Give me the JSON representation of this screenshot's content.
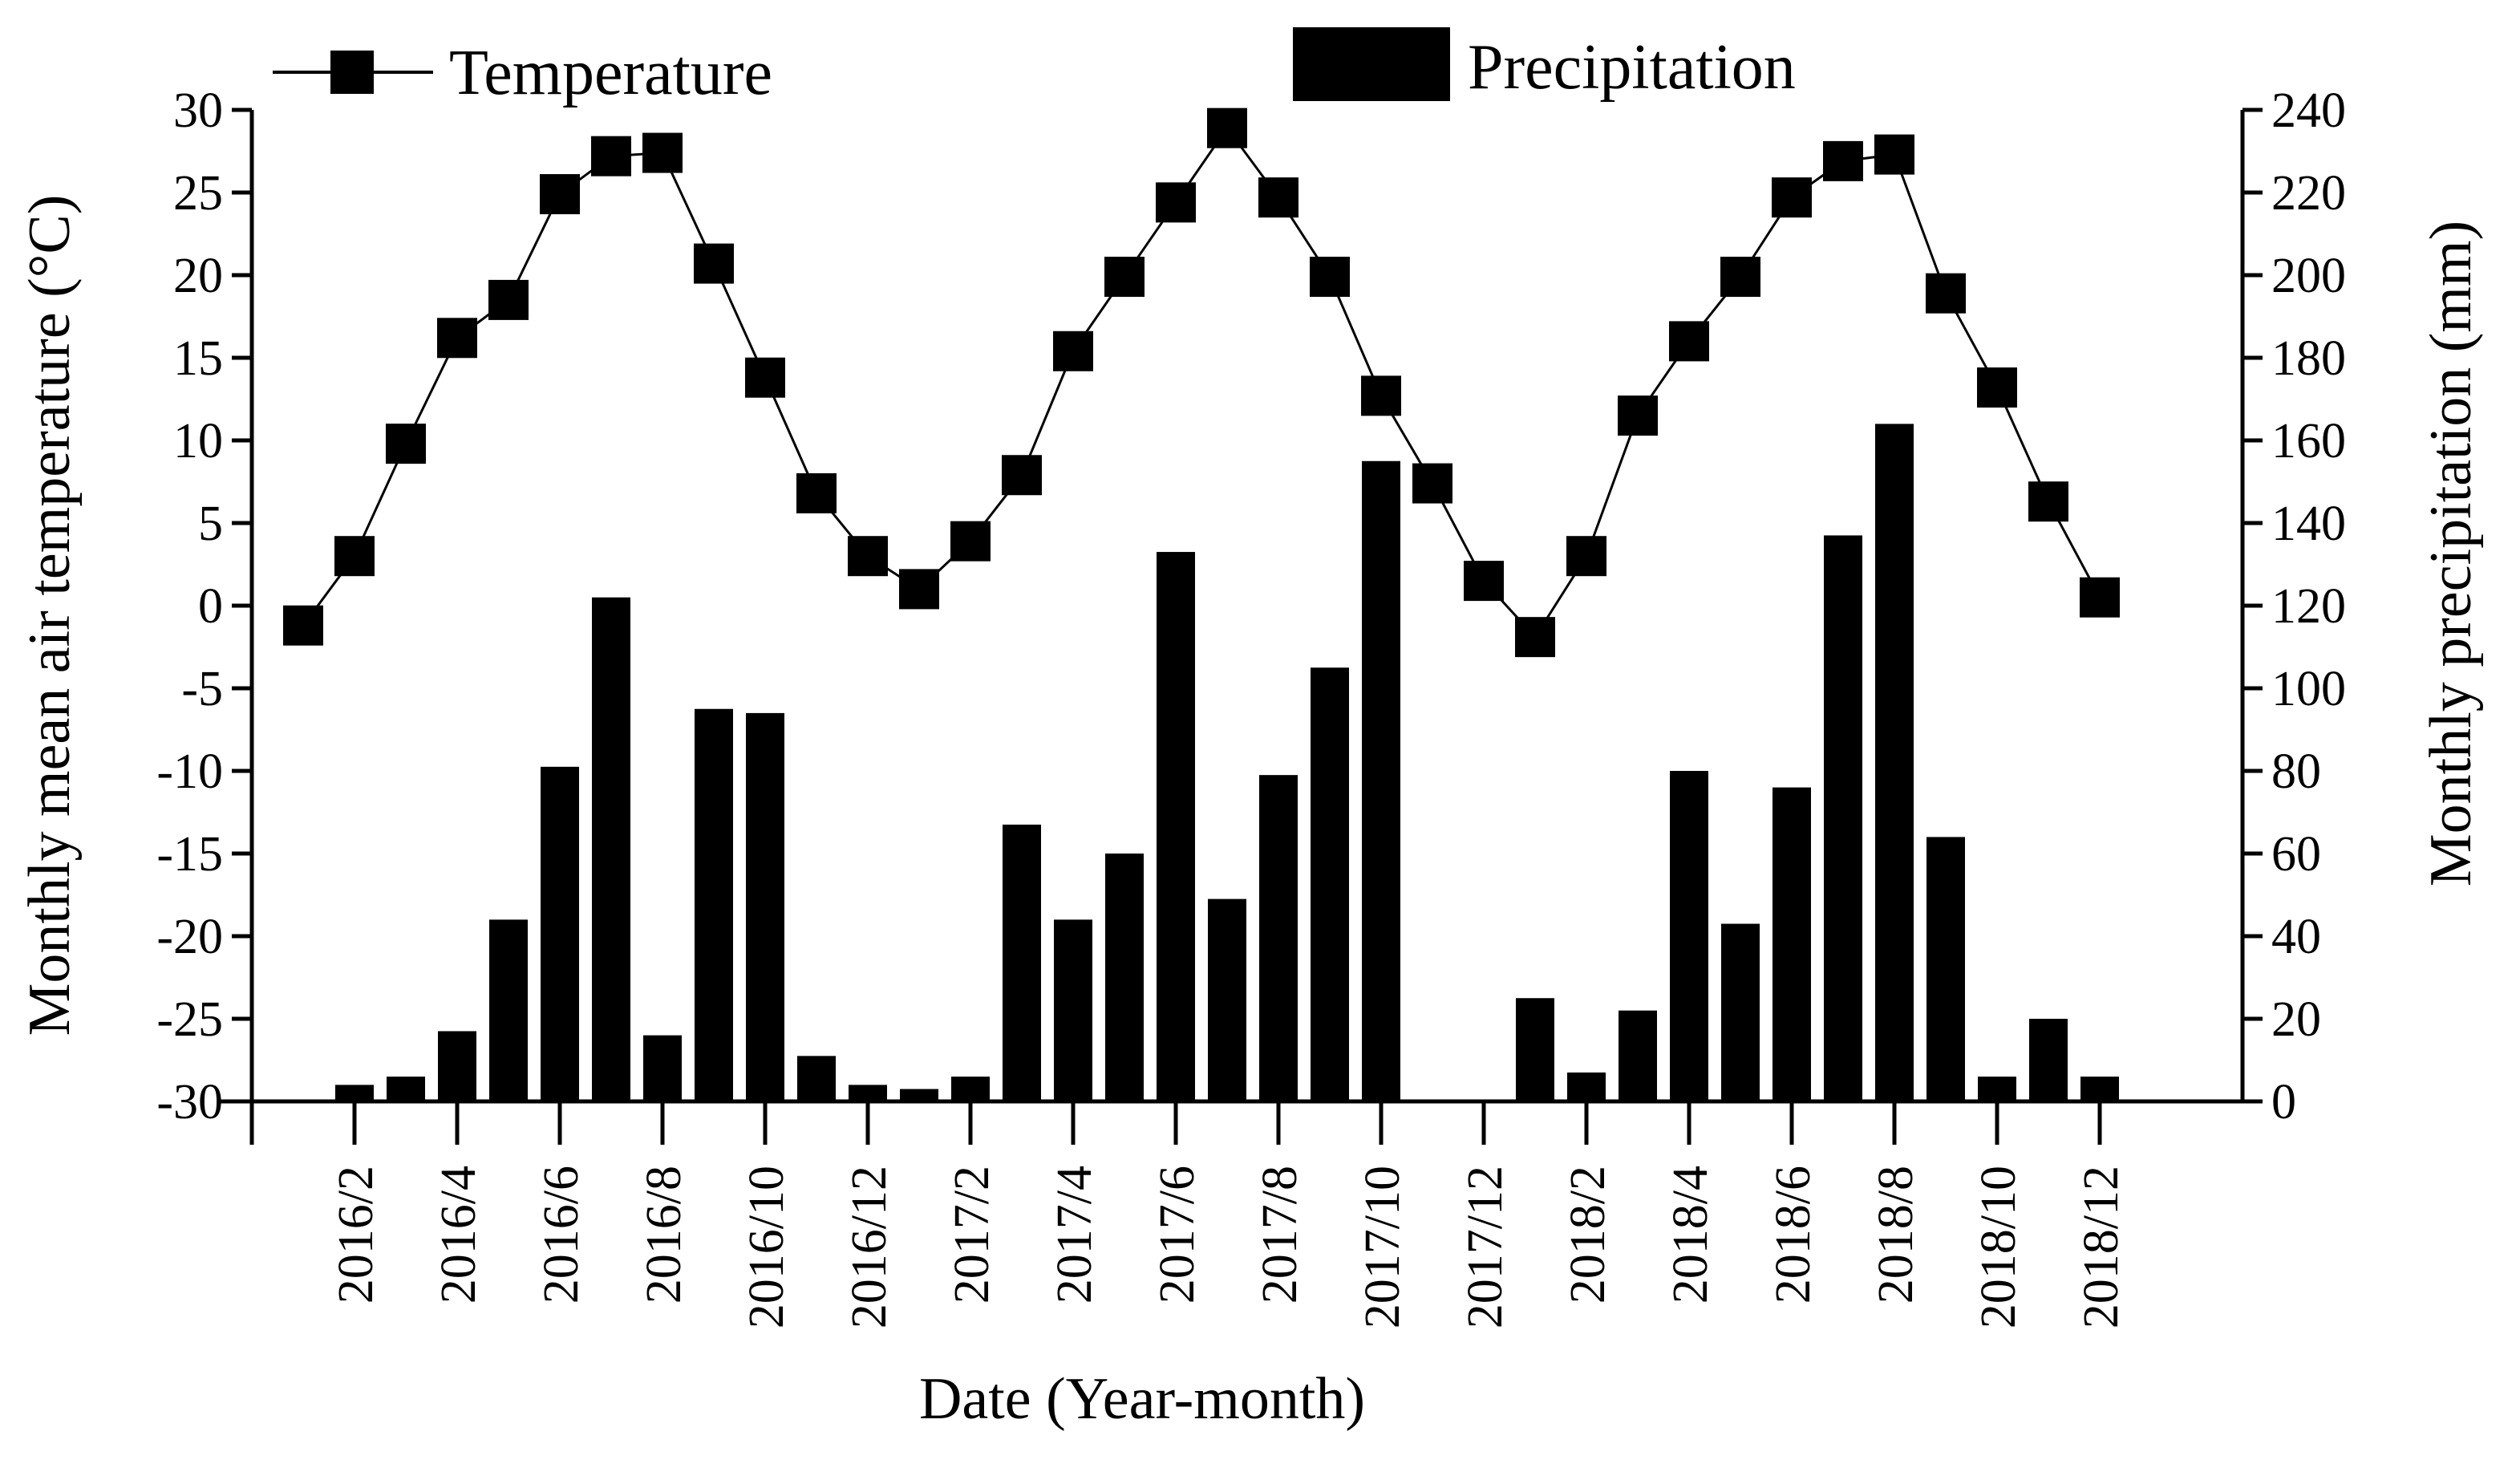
{
  "chart_data": {
    "type": "bar+line",
    "xlabel": "Date (Year-month)",
    "ylabel_left": "Monthly mean air temperature (°C)",
    "ylabel_right": "Monthly precipitation (mm)",
    "ylim_left": [
      -30,
      30
    ],
    "ylim_right": [
      0,
      240
    ],
    "yticks_left": [
      30,
      25,
      20,
      15,
      10,
      5,
      0,
      -5,
      -10,
      -15,
      -20,
      -25,
      -30
    ],
    "yticks_right": [
      240,
      220,
      200,
      180,
      160,
      140,
      120,
      100,
      80,
      60,
      40,
      20,
      0
    ],
    "categories": [
      "2016/1",
      "2016/2",
      "2016/3",
      "2016/4",
      "2016/5",
      "2016/6",
      "2016/7",
      "2016/8",
      "2016/9",
      "2016/10",
      "2016/11",
      "2016/12",
      "2017/1",
      "2017/2",
      "2017/3",
      "2017/4",
      "2017/5",
      "2017/6",
      "2017/7",
      "2017/8",
      "2017/9",
      "2017/10",
      "2017/11",
      "2017/12",
      "2018/1",
      "2018/2",
      "2018/3",
      "2018/4",
      "2018/5",
      "2018/6",
      "2018/7",
      "2018/8",
      "2018/9",
      "2018/10",
      "2018/11",
      "2018/12"
    ],
    "x_tick_labels": [
      "2016/2",
      "2016/4",
      "2016/6",
      "2016/8",
      "2016/10",
      "2016/12",
      "2017/2",
      "2017/4",
      "2017/6",
      "2017/8",
      "2017/10",
      "2017/12",
      "2018/2",
      "2018/4",
      "2018/6",
      "2018/8",
      "2018/10",
      "2018/12"
    ],
    "series": [
      {
        "name": "Temperature",
        "type": "line",
        "axis": "left",
        "values": [
          -1.2,
          3.0,
          9.8,
          16.2,
          18.5,
          24.9,
          27.2,
          27.4,
          20.7,
          13.8,
          6.8,
          3.0,
          1.0,
          3.9,
          7.9,
          15.4,
          19.9,
          24.4,
          28.9,
          24.7,
          19.9,
          12.7,
          7.4,
          1.5,
          -1.9,
          3.0,
          11.5,
          16.0,
          19.9,
          24.7,
          26.9,
          27.3,
          18.9,
          13.2,
          6.3,
          0.5
        ]
      },
      {
        "name": "Precipitation",
        "type": "bar",
        "axis": "right",
        "values": [
          0,
          4,
          6,
          17,
          44,
          81,
          122,
          16,
          95,
          94,
          11,
          4,
          3,
          6,
          67,
          44,
          60,
          133,
          49,
          79,
          105,
          155,
          0,
          0,
          25,
          7,
          22,
          80,
          43,
          76,
          137,
          164,
          64,
          6,
          20,
          6
        ]
      }
    ],
    "legend": [
      "Temperature",
      "Precipitation"
    ],
    "legend_position": "top",
    "grid": false
  }
}
